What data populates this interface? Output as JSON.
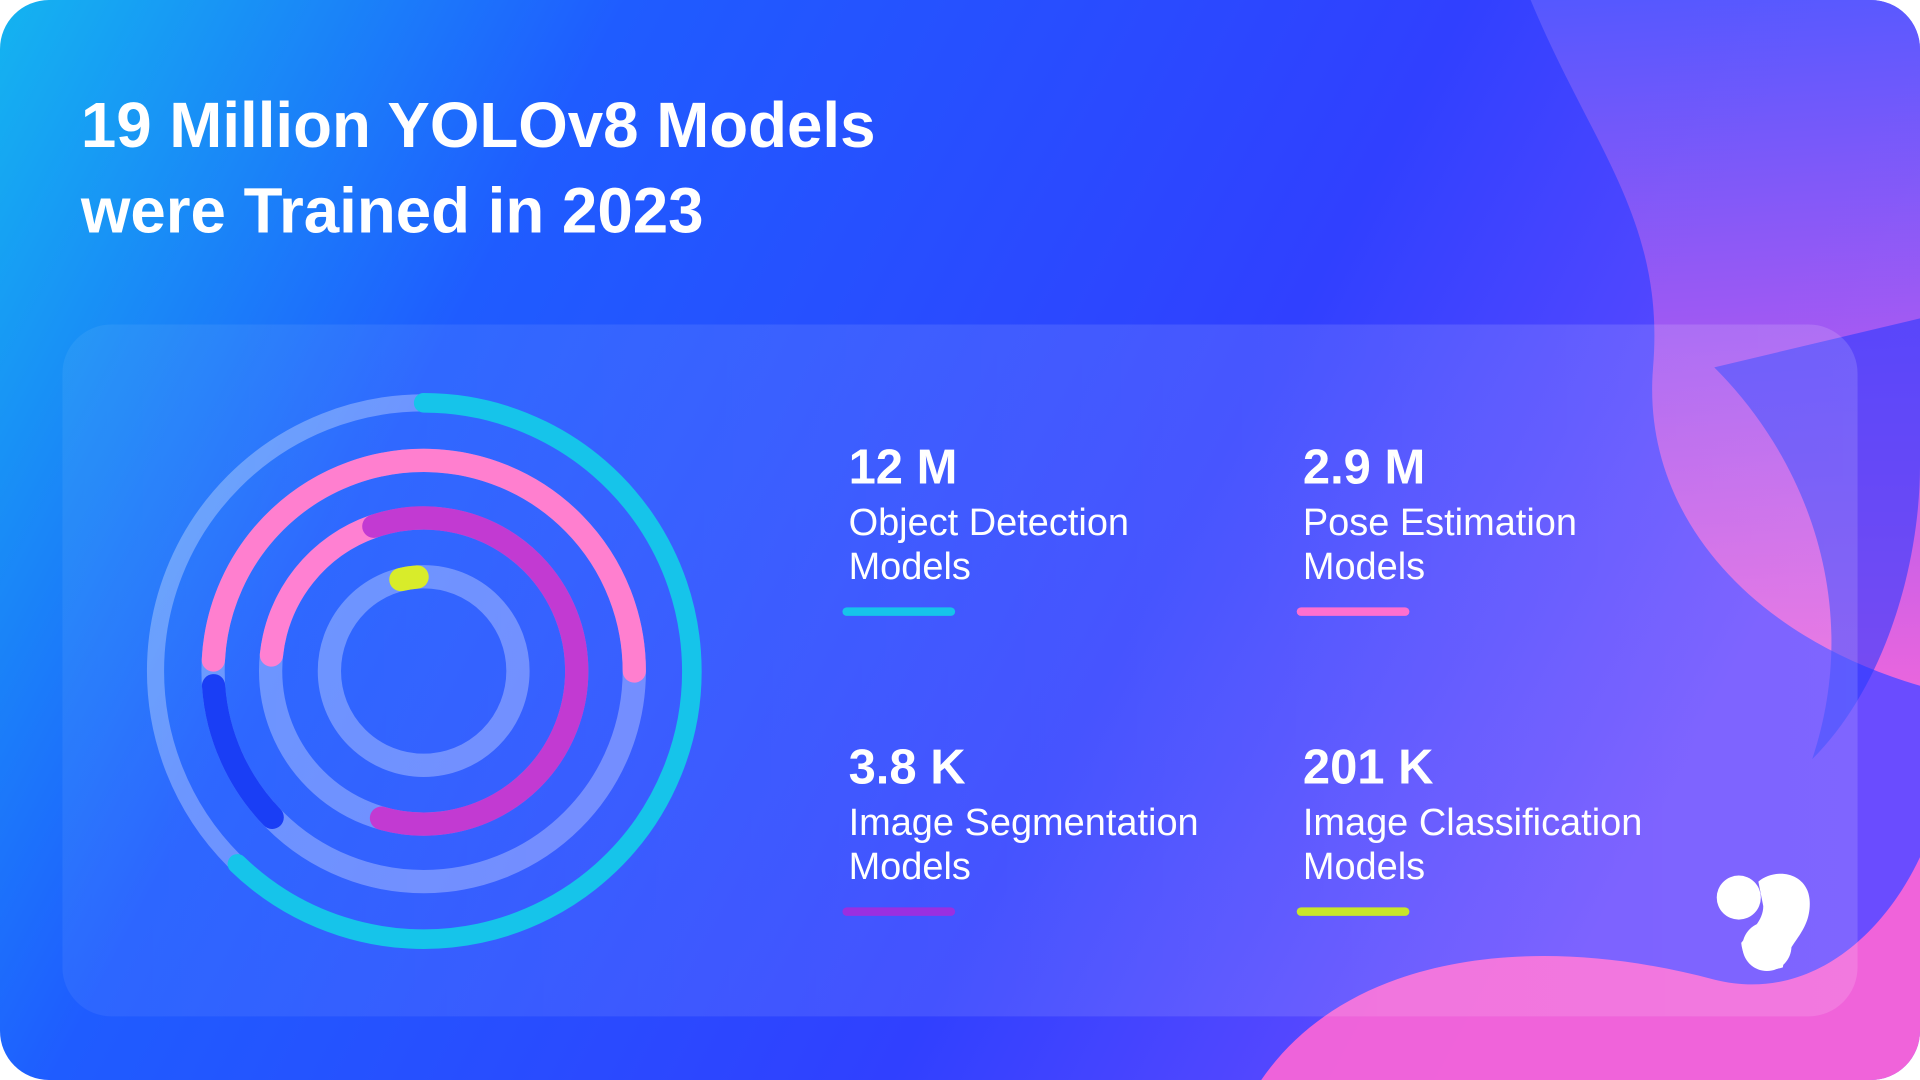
{
  "title": [
    "19 Million YOLOv8 Models",
    "were Trained in 2023"
  ],
  "stats": [
    {
      "value": "12 M",
      "label": [
        "Object Detection",
        "Models"
      ],
      "color": "#16c4ea"
    },
    {
      "value": "2.9 M",
      "label": [
        "Pose Estimation",
        "Models"
      ],
      "color": "#ff6fcf"
    },
    {
      "value": "3.8 K",
      "label": [
        "Image Segmentation",
        "Models"
      ],
      "color": "#9a2fe0"
    },
    {
      "value": "201 K",
      "label": [
        "Image Classification",
        "Models"
      ],
      "color": "#c8e62a"
    }
  ]
}
